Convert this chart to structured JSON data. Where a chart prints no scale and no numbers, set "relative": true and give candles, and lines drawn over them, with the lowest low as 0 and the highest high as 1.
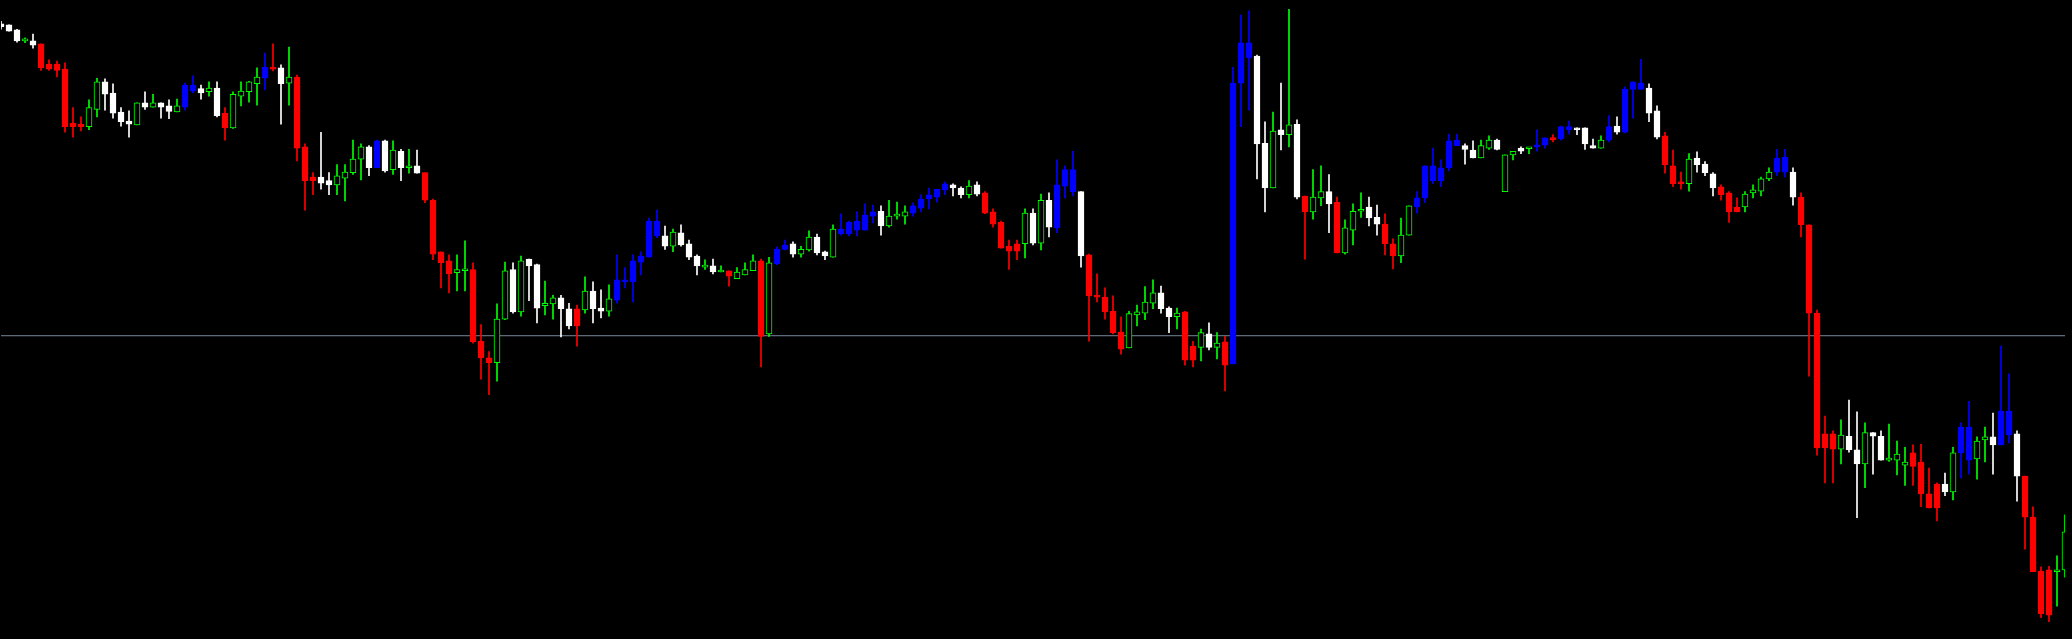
{
  "chart_data": {
    "type": "candlestick",
    "relative": true,
    "tick_labels": false,
    "categories": [
      null,
      null,
      null,
      null,
      null,
      null,
      null,
      null,
      null,
      null,
      null,
      null,
      null,
      null,
      null,
      null,
      null,
      null,
      null,
      null,
      null,
      null,
      null,
      null,
      null,
      null,
      null,
      null,
      null,
      null,
      null,
      null,
      null,
      null,
      null,
      null,
      null,
      null,
      null,
      null,
      null,
      null,
      null,
      null,
      null,
      null,
      null,
      null,
      null,
      null,
      null,
      null,
      null,
      null,
      null,
      null,
      null,
      null,
      null,
      null,
      null,
      null,
      null,
      null,
      null,
      null,
      null,
      null,
      null,
      null,
      null,
      null,
      null,
      null,
      null,
      null,
      null,
      null,
      null,
      null,
      null,
      null,
      null,
      null,
      null,
      null,
      null,
      null,
      null,
      null,
      null,
      null,
      null,
      null,
      null,
      null,
      null,
      null,
      null,
      null,
      null,
      null,
      null,
      null,
      null,
      null,
      null,
      null,
      null,
      null,
      null,
      null,
      null,
      null,
      null,
      null,
      null,
      null,
      null,
      null,
      null,
      null,
      null,
      null,
      null,
      null,
      null,
      null,
      null,
      null,
      null,
      null,
      null,
      null,
      null,
      null,
      null,
      null,
      null,
      null,
      null,
      null,
      null,
      null,
      null,
      null,
      null,
      null,
      null,
      null,
      null,
      null,
      null,
      null,
      null,
      null,
      null,
      null,
      null,
      null,
      null,
      null,
      null,
      null,
      null,
      null,
      null,
      null,
      null,
      null,
      null,
      null,
      null,
      null,
      null,
      null,
      null,
      null,
      null,
      null,
      null,
      null,
      null,
      null,
      null,
      null,
      null,
      null,
      null,
      null,
      null,
      null,
      null,
      null,
      null,
      null,
      null,
      null,
      null,
      null,
      null,
      null,
      null,
      null,
      null,
      null,
      null,
      null,
      null,
      null,
      null,
      null,
      null,
      null,
      null,
      null,
      null,
      null,
      null,
      null,
      null,
      null,
      null,
      null,
      null,
      null,
      null,
      null,
      null,
      null,
      null,
      null,
      null,
      null,
      null,
      null,
      null,
      null,
      null,
      null,
      null,
      null,
      null,
      null,
      null,
      null,
      null,
      null,
      null,
      null,
      null,
      null,
      null,
      null,
      null,
      null,
      null,
      null,
      null
    ],
    "ohlc": [
      [
        0.976,
        0.98,
        0.967,
        0.971
      ],
      [
        0.974,
        0.974,
        0.964,
        0.964
      ],
      [
        0.966,
        0.967,
        0.946,
        0.948
      ],
      [
        0.948,
        0.953,
        0.945,
        0.949
      ],
      [
        0.948,
        0.959,
        0.936,
        0.941
      ],
      [
        0.943,
        0.943,
        0.9,
        0.904
      ],
      [
        0.91,
        0.917,
        0.9,
        0.902
      ],
      [
        0.91,
        0.915,
        0.889,
        0.9
      ],
      [
        0.902,
        0.912,
        0.799,
        0.808
      ],
      [
        0.814,
        0.839,
        0.791,
        0.808
      ],
      [
        0.812,
        0.824,
        0.801,
        0.808
      ],
      [
        0.808,
        0.852,
        0.803,
        0.839
      ],
      [
        0.836,
        0.887,
        0.824,
        0.881
      ],
      [
        0.881,
        0.886,
        0.835,
        0.861
      ],
      [
        0.863,
        0.878,
        0.822,
        0.83
      ],
      [
        0.832,
        0.839,
        0.809,
        0.816
      ],
      [
        0.817,
        0.834,
        0.791,
        0.812
      ],
      [
        0.811,
        0.847,
        0.811,
        0.847
      ],
      [
        0.847,
        0.865,
        0.836,
        0.84
      ],
      [
        0.84,
        0.861,
        0.84,
        0.847
      ],
      [
        0.847,
        0.847,
        0.822,
        0.84
      ],
      [
        0.842,
        0.852,
        0.821,
        0.833
      ],
      [
        0.832,
        0.853,
        0.832,
        0.842
      ],
      [
        0.84,
        0.879,
        0.835,
        0.876
      ],
      [
        0.866,
        0.891,
        0.863,
        0.876
      ],
      [
        0.87,
        0.876,
        0.853,
        0.863
      ],
      [
        0.865,
        0.881,
        0.858,
        0.871
      ],
      [
        0.871,
        0.881,
        0.824,
        0.826
      ],
      [
        0.83,
        0.839,
        0.786,
        0.806
      ],
      [
        0.806,
        0.865,
        0.805,
        0.861
      ],
      [
        0.858,
        0.881,
        0.842,
        0.866
      ],
      [
        0.865,
        0.882,
        0.848,
        0.881
      ],
      [
        0.878,
        0.904,
        0.843,
        0.889
      ],
      [
        0.887,
        0.928,
        0.868,
        0.905
      ],
      [
        0.904,
        0.943,
        0.899,
        0.902
      ],
      [
        0.904,
        0.909,
        0.812,
        0.878
      ],
      [
        0.879,
        0.938,
        0.843,
        0.889
      ],
      [
        0.889,
        0.892,
        0.752,
        0.773
      ],
      [
        0.775,
        0.78,
        0.672,
        0.72
      ],
      [
        0.726,
        0.733,
        0.697,
        0.72
      ],
      [
        0.726,
        0.799,
        0.706,
        0.716
      ],
      [
        0.72,
        0.733,
        0.697,
        0.713
      ],
      [
        0.713,
        0.746,
        0.697,
        0.728
      ],
      [
        0.724,
        0.746,
        0.687,
        0.734
      ],
      [
        0.733,
        0.786,
        0.73,
        0.755
      ],
      [
        0.755,
        0.78,
        0.721,
        0.775
      ],
      [
        0.775,
        0.777,
        0.728,
        0.741
      ],
      [
        0.741,
        0.786,
        0.741,
        0.785
      ],
      [
        0.785,
        0.786,
        0.734,
        0.736
      ],
      [
        0.738,
        0.785,
        0.73,
        0.77
      ],
      [
        0.768,
        0.771,
        0.72,
        0.741
      ],
      [
        0.741,
        0.771,
        0.732,
        0.744
      ],
      [
        0.744,
        0.77,
        0.732,
        0.732
      ],
      [
        0.733,
        0.733,
        0.684,
        0.688
      ],
      [
        0.688,
        0.69,
        0.591,
        0.6
      ],
      [
        0.604,
        0.604,
        0.545,
        0.586
      ],
      [
        0.589,
        0.599,
        0.537,
        0.568
      ],
      [
        0.57,
        0.599,
        0.54,
        0.575
      ],
      [
        0.573,
        0.622,
        0.54,
        0.575
      ],
      [
        0.575,
        0.586,
        0.455,
        0.457
      ],
      [
        0.458,
        0.485,
        0.396,
        0.431
      ],
      [
        0.431,
        0.441,
        0.371,
        0.423
      ],
      [
        0.423,
        0.519,
        0.393,
        0.494
      ],
      [
        0.494,
        0.587,
        0.493,
        0.573
      ],
      [
        0.575,
        0.586,
        0.504,
        0.506
      ],
      [
        0.506,
        0.597,
        0.499,
        0.589
      ],
      [
        0.592,
        0.592,
        0.524,
        0.581
      ],
      [
        0.583,
        0.584,
        0.488,
        0.512
      ],
      [
        0.516,
        0.556,
        0.501,
        0.52
      ],
      [
        0.519,
        0.533,
        0.494,
        0.529
      ],
      [
        0.529,
        0.533,
        0.465,
        0.511
      ],
      [
        0.511,
        0.52,
        0.478,
        0.483
      ],
      [
        0.511,
        0.517,
        0.45,
        0.483
      ],
      [
        0.509,
        0.563,
        0.504,
        0.54
      ],
      [
        0.54,
        0.555,
        0.488,
        0.511
      ],
      [
        0.512,
        0.542,
        0.496,
        0.507
      ],
      [
        0.507,
        0.55,
        0.499,
        0.527
      ],
      [
        0.525,
        0.599,
        0.52,
        0.558
      ],
      [
        0.555,
        0.578,
        0.545,
        0.556
      ],
      [
        0.555,
        0.599,
        0.522,
        0.589
      ],
      [
        0.587,
        0.604,
        0.566,
        0.597
      ],
      [
        0.595,
        0.659,
        0.595,
        0.654
      ],
      [
        0.63,
        0.672,
        0.627,
        0.654
      ],
      [
        0.63,
        0.646,
        0.608,
        0.613
      ],
      [
        0.613,
        0.641,
        0.604,
        0.636
      ],
      [
        0.635,
        0.648,
        0.613,
        0.615
      ],
      [
        0.617,
        0.623,
        0.591,
        0.595
      ],
      [
        0.597,
        0.599,
        0.566,
        0.581
      ],
      [
        0.579,
        0.591,
        0.575,
        0.581
      ],
      [
        0.581,
        0.592,
        0.568,
        0.571
      ],
      [
        0.571,
        0.581,
        0.571,
        0.573
      ],
      [
        0.573,
        0.573,
        0.548,
        0.564
      ],
      [
        0.56,
        0.578,
        0.56,
        0.571
      ],
      [
        0.566,
        0.586,
        0.566,
        0.575
      ],
      [
        0.573,
        0.599,
        0.573,
        0.589
      ],
      [
        0.589,
        0.592,
        0.416,
        0.466
      ],
      [
        0.47,
        0.595,
        0.466,
        0.586
      ],
      [
        0.584,
        0.612,
        0.583,
        0.608
      ],
      [
        0.608,
        0.623,
        0.607,
        0.615
      ],
      [
        0.617,
        0.62,
        0.595,
        0.6
      ],
      [
        0.6,
        0.613,
        0.595,
        0.608
      ],
      [
        0.607,
        0.638,
        0.605,
        0.628
      ],
      [
        0.628,
        0.633,
        0.599,
        0.602
      ],
      [
        0.604,
        0.605,
        0.591,
        0.597
      ],
      [
        0.595,
        0.648,
        0.595,
        0.641
      ],
      [
        0.633,
        0.666,
        0.631,
        0.641
      ],
      [
        0.633,
        0.654,
        0.63,
        0.652
      ],
      [
        0.639,
        0.669,
        0.63,
        0.654
      ],
      [
        0.639,
        0.682,
        0.639,
        0.664
      ],
      [
        0.662,
        0.68,
        0.651,
        0.669
      ],
      [
        0.67,
        0.679,
        0.631,
        0.646
      ],
      [
        0.646,
        0.688,
        0.644,
        0.662
      ],
      [
        0.662,
        0.685,
        0.657,
        0.664
      ],
      [
        0.662,
        0.679,
        0.649,
        0.669
      ],
      [
        0.667,
        0.684,
        0.662,
        0.679
      ],
      [
        0.675,
        0.697,
        0.669,
        0.69
      ],
      [
        0.69,
        0.708,
        0.674,
        0.697
      ],
      [
        0.693,
        0.706,
        0.685,
        0.706
      ],
      [
        0.705,
        0.718,
        0.697,
        0.715
      ],
      [
        0.713,
        0.715,
        0.695,
        0.708
      ],
      [
        0.708,
        0.71,
        0.692,
        0.697
      ],
      [
        0.697,
        0.72,
        0.692,
        0.711
      ],
      [
        0.713,
        0.718,
        0.695,
        0.698
      ],
      [
        0.7,
        0.702,
        0.666,
        0.667
      ],
      [
        0.669,
        0.674,
        0.644,
        0.649
      ],
      [
        0.652,
        0.654,
        0.61,
        0.61
      ],
      [
        0.613,
        0.623,
        0.575,
        0.605
      ],
      [
        0.617,
        0.623,
        0.591,
        0.605
      ],
      [
        0.617,
        0.674,
        0.594,
        0.667
      ],
      [
        0.667,
        0.674,
        0.615,
        0.618
      ],
      [
        0.618,
        0.698,
        0.607,
        0.688
      ],
      [
        0.688,
        0.7,
        0.628,
        0.644
      ],
      [
        0.643,
        0.754,
        0.635,
        0.713
      ],
      [
        0.711,
        0.744,
        0.692,
        0.738
      ],
      [
        0.702,
        0.768,
        0.695,
        0.738
      ],
      [
        0.702,
        0.702,
        0.579,
        0.597
      ],
      [
        0.599,
        0.6,
        0.458,
        0.532
      ],
      [
        0.532,
        0.568,
        0.522,
        0.53
      ],
      [
        0.53,
        0.545,
        0.494,
        0.506
      ],
      [
        0.507,
        0.532,
        0.47,
        0.472
      ],
      [
        0.473,
        0.498,
        0.437,
        0.445
      ],
      [
        0.447,
        0.507,
        0.447,
        0.503
      ],
      [
        0.501,
        0.517,
        0.483,
        0.506
      ],
      [
        0.504,
        0.547,
        0.493,
        0.522
      ],
      [
        0.52,
        0.558,
        0.511,
        0.537
      ],
      [
        0.537,
        0.548,
        0.504,
        0.511
      ],
      [
        0.512,
        0.514,
        0.472,
        0.498
      ],
      [
        0.498,
        0.512,
        0.478,
        0.504
      ],
      [
        0.506,
        0.507,
        0.419,
        0.427
      ],
      [
        0.45,
        0.458,
        0.416,
        0.427
      ],
      [
        0.448,
        0.478,
        0.426,
        0.472
      ],
      [
        0.47,
        0.488,
        0.444,
        0.448
      ],
      [
        0.448,
        0.472,
        0.429,
        0.455
      ],
      [
        0.457,
        0.466,
        0.377,
        0.419
      ],
      [
        0.421,
        0.905,
        0.421,
        0.879
      ],
      [
        0.879,
        0.99,
        0.808,
        0.945
      ],
      [
        0.92,
        0.997,
        0.835,
        0.945
      ],
      [
        0.923,
        0.925,
        0.723,
        0.78
      ],
      [
        0.781,
        0.816,
        0.669,
        0.708
      ],
      [
        0.708,
        0.832,
        0.708,
        0.801
      ],
      [
        0.803,
        0.879,
        0.77,
        0.795
      ],
      [
        0.795,
        1,
        0.775,
        0.811
      ],
      [
        0.812,
        0.819,
        0.69,
        0.693
      ],
      [
        0.695,
        0.695,
        0.592,
        0.669
      ],
      [
        0.669,
        0.738,
        0.657,
        0.693
      ],
      [
        0.692,
        0.744,
        0.679,
        0.702
      ],
      [
        0.702,
        0.73,
        0.635,
        0.682
      ],
      [
        0.685,
        0.693,
        0.602,
        0.602
      ],
      [
        0.602,
        0.656,
        0.6,
        0.643
      ],
      [
        0.639,
        0.682,
        0.615,
        0.67
      ],
      [
        0.67,
        0.7,
        0.66,
        0.672
      ],
      [
        0.677,
        0.693,
        0.646,
        0.659
      ],
      [
        0.66,
        0.68,
        0.631,
        0.649
      ],
      [
        0.649,
        0.666,
        0.599,
        0.617
      ],
      [
        0.617,
        0.625,
        0.576,
        0.597
      ],
      [
        0.597,
        0.659,
        0.586,
        0.631
      ],
      [
        0.631,
        0.679,
        0.631,
        0.679
      ],
      [
        0.677,
        0.702,
        0.667,
        0.692
      ],
      [
        0.692,
        0.744,
        0.684,
        0.744
      ],
      [
        0.72,
        0.773,
        0.715,
        0.744
      ],
      [
        0.72,
        0.754,
        0.71,
        0.741
      ],
      [
        0.741,
        0.796,
        0.736,
        0.785
      ],
      [
        0.777,
        0.796,
        0.777,
        0.786
      ],
      [
        0.777,
        0.78,
        0.747,
        0.771
      ],
      [
        0.77,
        0.785,
        0.757,
        0.757
      ],
      [
        0.757,
        0.786,
        0.757,
        0.777
      ],
      [
        0.773,
        0.793,
        0.771,
        0.786
      ],
      [
        0.786,
        0.788,
        0.77,
        0.771
      ],
      [
        0.702,
        0.762,
        0.702,
        0.762
      ],
      [
        0.762,
        0.768,
        0.754,
        0.768
      ],
      [
        0.773,
        0.775,
        0.764,
        0.768
      ],
      [
        0.772,
        0.773,
        0.764,
        0.773
      ],
      [
        0.775,
        0.803,
        0.768,
        0.777
      ],
      [
        0.778,
        0.79,
        0.773,
        0.79
      ],
      [
        0.788,
        0.795,
        0.783,
        0.787
      ],
      [
        0.788,
        0.809,
        0.786,
        0.808
      ],
      [
        0.803,
        0.817,
        0.796,
        0.808
      ],
      [
        0.806,
        0.806,
        0.795,
        0.803
      ],
      [
        0.806,
        0.806,
        0.771,
        0.78
      ],
      [
        0.777,
        0.788,
        0.773,
        0.773
      ],
      [
        0.773,
        0.793,
        0.773,
        0.786
      ],
      [
        0.786,
        0.826,
        0.783,
        0.808
      ],
      [
        0.809,
        0.824,
        0.796,
        0.799
      ],
      [
        0.799,
        0.873,
        0.798,
        0.869
      ],
      [
        0.869,
        0.881,
        0.822,
        0.881
      ],
      [
        0.869,
        0.918,
        0.869,
        0.879
      ],
      [
        0.871,
        0.878,
        0.816,
        0.83
      ],
      [
        0.834,
        0.842,
        0.788,
        0.791
      ],
      [
        0.793,
        0.799,
        0.732,
        0.746
      ],
      [
        0.744,
        0.77,
        0.71,
        0.715
      ],
      [
        0.716,
        0.734,
        0.706,
        0.715
      ],
      [
        0.715,
        0.764,
        0.703,
        0.755
      ],
      [
        0.757,
        0.767,
        0.734,
        0.746
      ],
      [
        0.747,
        0.751,
        0.728,
        0.733
      ],
      [
        0.731,
        0.733,
        0.695,
        0.708
      ],
      [
        0.71,
        0.713,
        0.688,
        0.697
      ],
      [
        0.7,
        0.702,
        0.652,
        0.669
      ],
      [
        0.677,
        0.692,
        0.669,
        0.669
      ],
      [
        0.677,
        0.702,
        0.669,
        0.698
      ],
      [
        0.7,
        0.713,
        0.692,
        0.705
      ],
      [
        0.703,
        0.726,
        0.695,
        0.723
      ],
      [
        0.723,
        0.741,
        0.72,
        0.734
      ],
      [
        0.734,
        0.771,
        0.728,
        0.757
      ],
      [
        0.734,
        0.771,
        0.726,
        0.758
      ],
      [
        0.734,
        0.741,
        0.68,
        0.693
      ],
      [
        0.693,
        0.7,
        0.628,
        0.648
      ],
      [
        0.648,
        0.648,
        0.401,
        0.504
      ],
      [
        0.504,
        0.509,
        0.272,
        0.284
      ],
      [
        0.307,
        0.336,
        0.227,
        0.284
      ],
      [
        0.307,
        0.312,
        0.227,
        0.282
      ],
      [
        0.282,
        0.33,
        0.258,
        0.305
      ],
      [
        0.303,
        0.362,
        0.277,
        0.281
      ],
      [
        0.281,
        0.343,
        0.17,
        0.258
      ],
      [
        0.258,
        0.325,
        0.219,
        0.309
      ],
      [
        0.309,
        0.309,
        0.241,
        0.303
      ],
      [
        0.303,
        0.312,
        0.264,
        0.264
      ],
      [
        0.264,
        0.323,
        0.262,
        0.266
      ],
      [
        0.264,
        0.295,
        0.24,
        0.274
      ],
      [
        0.256,
        0.285,
        0.223,
        0.261
      ],
      [
        0.276,
        0.289,
        0.223,
        0.254
      ],
      [
        0.261,
        0.29,
        0.188,
        0.209
      ],
      [
        0.209,
        0.251,
        0.186,
        0.186
      ],
      [
        0.225,
        0.227,
        0.165,
        0.186
      ],
      [
        0.225,
        0.243,
        0.206,
        0.212
      ],
      [
        0.212,
        0.285,
        0.199,
        0.276
      ],
      [
        0.276,
        0.325,
        0.235,
        0.318
      ],
      [
        0.264,
        0.36,
        0.241,
        0.318
      ],
      [
        0.266,
        0.302,
        0.233,
        0.295
      ],
      [
        0.297,
        0.318,
        0.261,
        0.302
      ],
      [
        0.302,
        0.341,
        0.241,
        0.289
      ],
      [
        0.289,
        0.45,
        0.289,
        0.344
      ],
      [
        0.305,
        0.405,
        0.292,
        0.344
      ],
      [
        0.307,
        0.312,
        0.197,
        0.238
      ],
      [
        0.238,
        0.238,
        0.119,
        0.171
      ],
      [
        0.171,
        0.188,
        0.082,
        0.082
      ],
      [
        0.083,
        0.09,
        0.007,
        0.013
      ],
      [
        0.085,
        0.091,
        0,
        0.011
      ],
      [
        0.082,
        0.108,
        0.026,
        0.085
      ],
      [
        0.085,
        0.175,
        0.073,
        0.147
      ]
    ],
    "colors": [
      "#ffffff",
      "#ffffff",
      "#ffffff",
      "#00ff00",
      "#ffffff",
      "#ff0000",
      "#ff0000",
      "#ff0000",
      "#ff0000",
      "#ff0000",
      "#ff0000",
      "#00ff00",
      "#00ff00",
      "#ffffff",
      "#ffffff",
      "#ffffff",
      "#ffffff",
      "#00ff00",
      "#ffffff",
      "#00ff00",
      "#ffffff",
      "#ffffff",
      "#00ff00",
      "#0000ff",
      "#0000ff",
      "#ffffff",
      "#00ff00",
      "#ffffff",
      "#ff0000",
      "#00ff00",
      "#00ff00",
      "#00ff00",
      "#00ff00",
      "#0000ff",
      "#ff0000",
      "#ffffff",
      "#00ff00",
      "#ff0000",
      "#ff0000",
      "#ff0000",
      "#ffffff",
      "#ffffff",
      "#00ff00",
      "#00ff00",
      "#00ff00",
      "#00ff00",
      "#ffffff",
      "#0000ff",
      "#ffffff",
      "#00ff00",
      "#ffffff",
      "#00ff00",
      "#ffffff",
      "#ff0000",
      "#ff0000",
      "#ff0000",
      "#ff0000",
      "#00ff00",
      "#00ff00",
      "#ff0000",
      "#ff0000",
      "#ff0000",
      "#00ff00",
      "#00ff00",
      "#ffffff",
      "#00ff00",
      "#ffffff",
      "#ffffff",
      "#00ff00",
      "#00ff00",
      "#ffffff",
      "#ffffff",
      "#ff0000",
      "#00ff00",
      "#ffffff",
      "#ffffff",
      "#00ff00",
      "#0000ff",
      "#0000ff",
      "#0000ff",
      "#0000ff",
      "#0000ff",
      "#0000ff",
      "#ffffff",
      "#00ff00",
      "#ffffff",
      "#ffffff",
      "#ffffff",
      "#00ff00",
      "#ffffff",
      "#00ff00",
      "#ff0000",
      "#00ff00",
      "#00ff00",
      "#00ff00",
      "#ff0000",
      "#00ff00",
      "#0000ff",
      "#0000ff",
      "#ffffff",
      "#00ff00",
      "#00ff00",
      "#ffffff",
      "#ffffff",
      "#00ff00",
      "#0000ff",
      "#0000ff",
      "#0000ff",
      "#0000ff",
      "#0000ff",
      "#ffffff",
      "#00ff00",
      "#00ff00",
      "#00ff00",
      "#0000ff",
      "#0000ff",
      "#0000ff",
      "#0000ff",
      "#0000ff",
      "#ffffff",
      "#ffffff",
      "#00ff00",
      "#ffffff",
      "#ff0000",
      "#ff0000",
      "#ff0000",
      "#ff0000",
      "#ff0000",
      "#00ff00",
      "#ffffff",
      "#00ff00",
      "#ffffff",
      "#0000ff",
      "#0000ff",
      "#0000ff",
      "#ffffff",
      "#ff0000",
      "#ff0000",
      "#ff0000",
      "#ff0000",
      "#ff0000",
      "#00ff00",
      "#00ff00",
      "#00ff00",
      "#00ff00",
      "#ffffff",
      "#ffffff",
      "#00ff00",
      "#ff0000",
      "#ff0000",
      "#00ff00",
      "#ffffff",
      "#00ff00",
      "#ff0000",
      "#0000ff",
      "#0000ff",
      "#0000ff",
      "#ffffff",
      "#ffffff",
      "#00ff00",
      "#ffffff",
      "#00ff00",
      "#ffffff",
      "#ff0000",
      "#00ff00",
      "#00ff00",
      "#ffffff",
      "#ff0000",
      "#00ff00",
      "#00ff00",
      "#00ff00",
      "#ffffff",
      "#ffffff",
      "#ff0000",
      "#ff0000",
      "#00ff00",
      "#00ff00",
      "#0000ff",
      "#0000ff",
      "#0000ff",
      "#0000ff",
      "#0000ff",
      "#0000ff",
      "#ffffff",
      "#ffffff",
      "#00ff00",
      "#00ff00",
      "#ffffff",
      "#00ff00",
      "#00ff00",
      "#ffffff",
      "#00ff00",
      "#0000ff",
      "#0000ff",
      "#ff0000",
      "#0000ff",
      "#0000ff",
      "#ffffff",
      "#ffffff",
      "#ffffff",
      "#00ff00",
      "#0000ff",
      "#ffffff",
      "#0000ff",
      "#0000ff",
      "#0000ff",
      "#ffffff",
      "#ffffff",
      "#ff0000",
      "#ff0000",
      "#ff0000",
      "#00ff00",
      "#ffffff",
      "#ffffff",
      "#ffffff",
      "#ff0000",
      "#ff0000",
      "#ff0000",
      "#00ff00",
      "#00ff00",
      "#00ff00",
      "#00ff00",
      "#0000ff",
      "#0000ff",
      "#ffffff",
      "#ff0000",
      "#ff0000",
      "#ff0000",
      "#ff0000",
      "#ff0000",
      "#00ff00",
      "#ffffff",
      "#ffffff",
      "#00ff00",
      "#ffffff",
      "#ffffff",
      "#00ff00",
      "#00ff00",
      "#00ff00",
      "#ff0000",
      "#ff0000",
      "#ff0000",
      "#ff0000",
      "#ffffff",
      "#00ff00",
      "#0000ff",
      "#0000ff",
      "#00ff00",
      "#00ff00",
      "#ffffff",
      "#0000ff",
      "#0000ff",
      "#ffffff",
      "#ff0000",
      "#ff0000",
      "#ff0000",
      "#ff0000",
      "#00ff00",
      "#00ff00"
    ],
    "ref_lines": [
      {
        "axis": "y",
        "value": 0.467,
        "color": "#778899"
      }
    ]
  }
}
